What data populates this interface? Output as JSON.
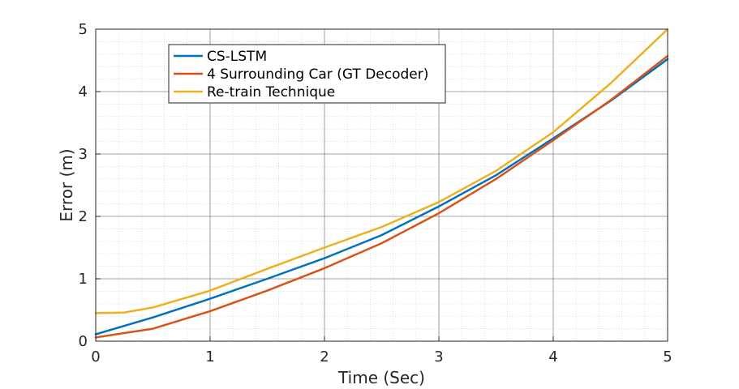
{
  "chart_data": {
    "type": "line",
    "xlabel": "Time (Sec)",
    "ylabel": "Error (m)",
    "xlim": [
      0,
      5
    ],
    "ylim": [
      0,
      5
    ],
    "xticks": [
      0,
      1,
      2,
      3,
      4,
      5
    ],
    "yticks": [
      0,
      1,
      2,
      3,
      4,
      5
    ],
    "grid": true,
    "minor_grid": true,
    "legend_position": "top-left",
    "series": [
      {
        "name": "CS-LSTM",
        "color": "#0072BD",
        "x": [
          0,
          0.5,
          1,
          1.5,
          2,
          2.5,
          3,
          3.5,
          4,
          4.5,
          5
        ],
        "y": [
          0.11,
          0.38,
          0.68,
          1.0,
          1.33,
          1.7,
          2.16,
          2.66,
          3.25,
          3.85,
          4.52
        ]
      },
      {
        "name": "4 Surrounding Car (GT Decoder)",
        "color": "#D95319",
        "x": [
          0,
          0.5,
          1,
          1.5,
          2,
          2.5,
          3,
          3.5,
          4,
          4.5,
          5
        ],
        "y": [
          0.06,
          0.2,
          0.48,
          0.81,
          1.17,
          1.57,
          2.05,
          2.6,
          3.22,
          3.86,
          4.57
        ]
      },
      {
        "name": "Re-train Technique",
        "color": "#EDB120",
        "x": [
          0,
          0.25,
          0.5,
          1,
          1.5,
          2,
          2.5,
          3,
          3.5,
          4,
          4.5,
          5
        ],
        "y": [
          0.45,
          0.46,
          0.54,
          0.81,
          1.16,
          1.5,
          1.83,
          2.23,
          2.73,
          3.35,
          4.13,
          5.0
        ]
      }
    ]
  }
}
